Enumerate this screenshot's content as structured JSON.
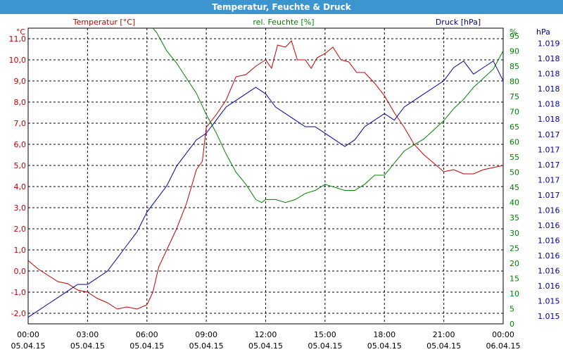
{
  "window": {
    "title": "Temperatur, Feuchte & Druck"
  },
  "colors": {
    "temp": "#c00000",
    "hum": "#008000",
    "press": "#00009e",
    "grid": "#000000",
    "title_bar": "#3d95d0"
  },
  "chart_data": {
    "type": "line",
    "title": "Temperatur, Feuchte & Druck",
    "grid": true,
    "x_ticks": [
      {
        "time": "00:00",
        "date": "05.04.15"
      },
      {
        "time": "03:00",
        "date": "05.04.15"
      },
      {
        "time": "06:00",
        "date": "05.04.15"
      },
      {
        "time": "09:00",
        "date": "05.04.15"
      },
      {
        "time": "12:00",
        "date": "05.04.15"
      },
      {
        "time": "15:00",
        "date": "05.04.15"
      },
      {
        "time": "18:00",
        "date": "05.04.15"
      },
      {
        "time": "21:00",
        "date": "05.04.15"
      },
      {
        "time": "00:00",
        "date": "06.04.15"
      }
    ],
    "x_range_hours": [
      0,
      24
    ],
    "axes": {
      "temp": {
        "label": "Temperatur [°C]",
        "unit": "°C",
        "min": -2.5,
        "max": 11.5,
        "ticks": [
          "-2,0",
          "-1,0",
          "0,0",
          "1,0",
          "2,0",
          "3,0",
          "4,0",
          "5,0",
          "6,0",
          "7,0",
          "8,0",
          "9,0",
          "10,0",
          "11,0"
        ]
      },
      "hum": {
        "label": "rel. Feuchte [%]",
        "unit": "%",
        "min": 0,
        "max": 97.5,
        "ticks": [
          "0",
          "5",
          "10",
          "15",
          "20",
          "25",
          "30",
          "35",
          "40",
          "45",
          "50",
          "55",
          "60",
          "65",
          "70",
          "75",
          "80",
          "85",
          "90",
          "95"
        ]
      },
      "press": {
        "label": "Druck [hPa]",
        "unit": "hPa",
        "min": 1014.9,
        "max": 1019.4,
        "ticks": [
          "1.015",
          "1.015",
          "1.016",
          "1.016",
          "1.016",
          "1.016",
          "1.016",
          "1.016",
          "1.017",
          "1.017",
          "1.017",
          "1.017",
          "1.017",
          "1.018",
          "1.018",
          "1.018",
          "1.018",
          "1.018",
          "1.019"
        ]
      }
    },
    "series": [
      {
        "name": "Temperatur [°C]",
        "axis": "temp",
        "color": "#c00000",
        "points": [
          [
            0,
            0.5
          ],
          [
            0.5,
            0.1
          ],
          [
            1,
            -0.2
          ],
          [
            1.5,
            -0.5
          ],
          [
            2,
            -0.6
          ],
          [
            2.5,
            -0.9
          ],
          [
            3,
            -1.0
          ],
          [
            3.5,
            -1.3
          ],
          [
            4,
            -1.5
          ],
          [
            4.5,
            -1.8
          ],
          [
            5,
            -1.7
          ],
          [
            5.5,
            -1.8
          ],
          [
            6,
            -1.6
          ],
          [
            6.3,
            -1.0
          ],
          [
            6.6,
            0.2
          ],
          [
            7,
            1.0
          ],
          [
            7.5,
            2.0
          ],
          [
            8,
            3.2
          ],
          [
            8.5,
            4.8
          ],
          [
            8.8,
            5.2
          ],
          [
            9,
            6.8
          ],
          [
            9.5,
            7.4
          ],
          [
            10,
            8.1
          ],
          [
            10.5,
            9.2
          ],
          [
            11,
            9.3
          ],
          [
            11.5,
            9.7
          ],
          [
            12,
            10.0
          ],
          [
            12.3,
            9.6
          ],
          [
            12.6,
            10.7
          ],
          [
            13,
            10.6
          ],
          [
            13.3,
            10.9
          ],
          [
            13.6,
            10.0
          ],
          [
            14,
            10.0
          ],
          [
            14.3,
            9.6
          ],
          [
            14.6,
            10.1
          ],
          [
            15,
            10.3
          ],
          [
            15.4,
            10.6
          ],
          [
            15.8,
            10.0
          ],
          [
            16.2,
            9.9
          ],
          [
            16.6,
            9.4
          ],
          [
            17,
            9.4
          ],
          [
            17.5,
            8.9
          ],
          [
            18,
            8.3
          ],
          [
            18.5,
            7.5
          ],
          [
            19,
            6.8
          ],
          [
            19.5,
            6.0
          ],
          [
            20,
            5.5
          ],
          [
            20.5,
            5.1
          ],
          [
            21,
            4.7
          ],
          [
            21.5,
            4.8
          ],
          [
            22,
            4.6
          ],
          [
            22.5,
            4.6
          ],
          [
            23,
            4.8
          ],
          [
            23.5,
            4.9
          ],
          [
            24,
            5.0
          ]
        ]
      },
      {
        "name": "rel. Feuchte [%]",
        "axis": "hum",
        "color": "#008000",
        "points": [
          [
            6.3,
            97.5
          ],
          [
            6.5,
            96
          ],
          [
            7,
            90
          ],
          [
            7.5,
            86
          ],
          [
            8,
            81
          ],
          [
            8.5,
            76
          ],
          [
            9,
            69
          ],
          [
            9.5,
            63
          ],
          [
            10,
            56
          ],
          [
            10.5,
            50
          ],
          [
            11,
            46
          ],
          [
            11.5,
            41
          ],
          [
            11.8,
            40
          ],
          [
            12,
            41
          ],
          [
            12.5,
            41
          ],
          [
            13,
            40
          ],
          [
            13.5,
            41
          ],
          [
            14,
            43
          ],
          [
            14.5,
            44
          ],
          [
            15,
            46
          ],
          [
            15.5,
            45
          ],
          [
            16,
            44
          ],
          [
            16.5,
            44
          ],
          [
            17,
            46
          ],
          [
            17.5,
            49
          ],
          [
            18,
            49
          ],
          [
            18.5,
            53
          ],
          [
            19,
            57
          ],
          [
            19.5,
            59
          ],
          [
            20,
            61
          ],
          [
            20.5,
            64
          ],
          [
            21,
            67
          ],
          [
            21.5,
            71
          ],
          [
            22,
            74
          ],
          [
            22.5,
            78
          ],
          [
            23,
            81
          ],
          [
            23.5,
            84
          ],
          [
            24,
            90
          ]
        ]
      },
      {
        "name": "Druck [hPa]",
        "axis": "press",
        "color": "#00009e",
        "points": [
          [
            0,
            1015.0
          ],
          [
            0.5,
            1015.1
          ],
          [
            1,
            1015.2
          ],
          [
            1.5,
            1015.3
          ],
          [
            2,
            1015.4
          ],
          [
            2.5,
            1015.5
          ],
          [
            3,
            1015.5
          ],
          [
            3.5,
            1015.6
          ],
          [
            4,
            1015.7
          ],
          [
            4.5,
            1015.9
          ],
          [
            5,
            1016.1
          ],
          [
            5.5,
            1016.3
          ],
          [
            6,
            1016.6
          ],
          [
            6.5,
            1016.8
          ],
          [
            7,
            1017.0
          ],
          [
            7.5,
            1017.3
          ],
          [
            8,
            1017.5
          ],
          [
            8.5,
            1017.7
          ],
          [
            9,
            1017.8
          ],
          [
            9.5,
            1018.0
          ],
          [
            10,
            1018.2
          ],
          [
            10.5,
            1018.3
          ],
          [
            11,
            1018.4
          ],
          [
            11.5,
            1018.5
          ],
          [
            12,
            1018.4
          ],
          [
            12.5,
            1018.2
          ],
          [
            13,
            1018.1
          ],
          [
            13.5,
            1018.0
          ],
          [
            14,
            1017.9
          ],
          [
            14.5,
            1017.9
          ],
          [
            15,
            1017.8
          ],
          [
            15.5,
            1017.7
          ],
          [
            16,
            1017.6
          ],
          [
            16.5,
            1017.7
          ],
          [
            17,
            1017.9
          ],
          [
            17.5,
            1018.0
          ],
          [
            18,
            1018.1
          ],
          [
            18.5,
            1018.0
          ],
          [
            19,
            1018.2
          ],
          [
            19.5,
            1018.3
          ],
          [
            20,
            1018.4
          ],
          [
            20.5,
            1018.5
          ],
          [
            21,
            1018.6
          ],
          [
            21.5,
            1018.8
          ],
          [
            22,
            1018.9
          ],
          [
            22.5,
            1018.7
          ],
          [
            23,
            1018.8
          ],
          [
            23.5,
            1018.9
          ],
          [
            24,
            1018.6
          ]
        ]
      }
    ]
  }
}
